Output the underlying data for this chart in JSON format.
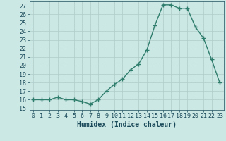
{
  "x": [
    0,
    1,
    2,
    3,
    4,
    5,
    6,
    7,
    8,
    9,
    10,
    11,
    12,
    13,
    14,
    15,
    16,
    17,
    18,
    19,
    20,
    21,
    22,
    23
  ],
  "y": [
    16,
    16,
    16,
    16.3,
    16,
    16,
    15.8,
    15.5,
    16,
    17,
    17.8,
    18.4,
    19.5,
    20.2,
    21.8,
    24.7,
    27.1,
    27.1,
    26.7,
    26.7,
    24.5,
    23.2,
    20.7,
    18
  ],
  "xlabel": "Humidex (Indice chaleur)",
  "xlim": [
    -0.5,
    23.5
  ],
  "ylim": [
    14.8,
    27.5
  ],
  "yticks": [
    15,
    16,
    17,
    18,
    19,
    20,
    21,
    22,
    23,
    24,
    25,
    26,
    27
  ],
  "xticks": [
    0,
    1,
    2,
    3,
    4,
    5,
    6,
    7,
    8,
    9,
    10,
    11,
    12,
    13,
    14,
    15,
    16,
    17,
    18,
    19,
    20,
    21,
    22,
    23
  ],
  "line_color": "#2e7d6d",
  "bg_color": "#cce8e4",
  "grid_color": "#b0ccca",
  "marker": "+",
  "linewidth": 1.0,
  "markersize": 4,
  "tick_fontsize": 6,
  "xlabel_fontsize": 7,
  "label_color": "#1a4a5a"
}
